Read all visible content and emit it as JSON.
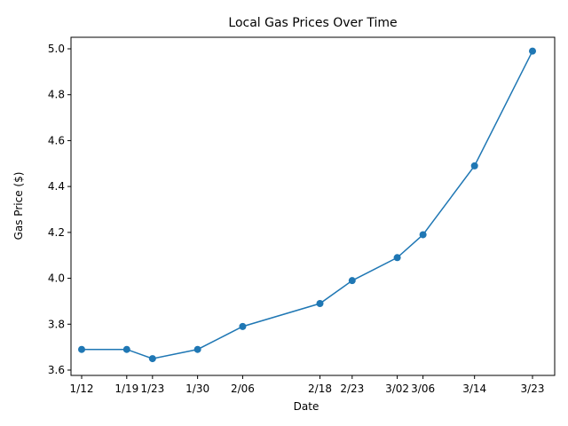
{
  "chart_data": {
    "type": "line",
    "title": "Local Gas Prices Over Time",
    "xlabel": "Date",
    "ylabel": "Gas Price ($)",
    "date_year": null,
    "categories": [
      "1/12",
      "1/19",
      "1/23",
      "1/30",
      "2/06",
      "2/18",
      "2/23",
      "3/02",
      "3/06",
      "3/14",
      "3/23"
    ],
    "x_day_of_year": [
      12,
      19,
      23,
      30,
      37,
      49,
      54,
      61,
      65,
      73,
      82
    ],
    "values": [
      3.69,
      3.69,
      3.65,
      3.69,
      3.79,
      3.89,
      3.99,
      4.09,
      4.19,
      4.49,
      4.99
    ],
    "ylim": [
      3.6,
      5.0
    ],
    "yticks": [
      "3.6",
      "3.8",
      "4.0",
      "4.2",
      "4.4",
      "4.6",
      "4.8",
      "5.0"
    ],
    "grid": false,
    "legend": "none",
    "markers": "circle",
    "colors": {
      "line": "#1f77b4"
    }
  }
}
